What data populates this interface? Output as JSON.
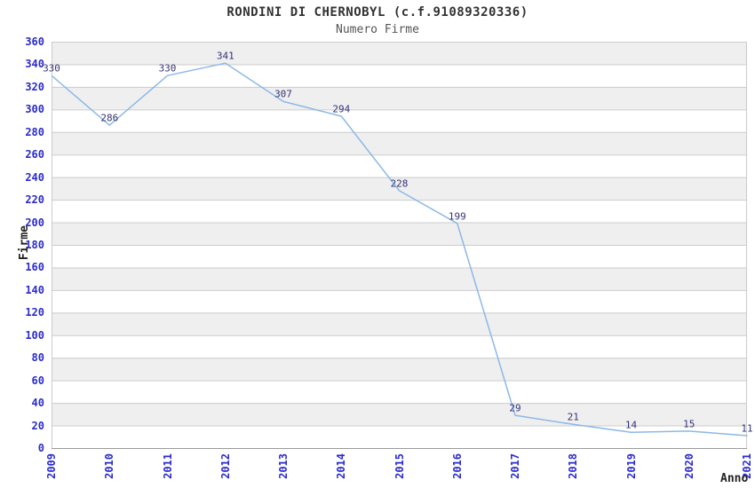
{
  "chart_data": {
    "type": "line",
    "title": "RONDINI DI CHERNOBYL (c.f.91089320336)",
    "subtitle": "Numero Firme",
    "xlabel": "Anno",
    "ylabel": "Firme",
    "x": [
      2009,
      2010,
      2011,
      2012,
      2013,
      2014,
      2015,
      2016,
      2017,
      2018,
      2019,
      2020,
      2021
    ],
    "series": [
      {
        "name": "Numero Firme",
        "values": [
          330,
          286,
          330,
          341,
          307,
          294,
          228,
          199,
          29,
          21,
          14,
          15,
          11
        ]
      }
    ],
    "data_labels_shown": true,
    "ylim": [
      0,
      360
    ],
    "ytick_step": 20,
    "yticks": [
      0,
      20,
      40,
      60,
      80,
      100,
      120,
      140,
      160,
      180,
      200,
      220,
      240,
      260,
      280,
      300,
      320,
      340,
      360
    ],
    "grid": "horizontal",
    "striped_background": true,
    "legend_position": "none",
    "colors": {
      "line": "#8cb8e8",
      "grid": "#cccccc",
      "axis": "#9a9a9a",
      "stripe": "#efefef",
      "tick": "#2b2bcc",
      "dlabel": "#333377",
      "title": "#333333",
      "subtitle": "#555555",
      "axistitle": "#222222"
    }
  }
}
